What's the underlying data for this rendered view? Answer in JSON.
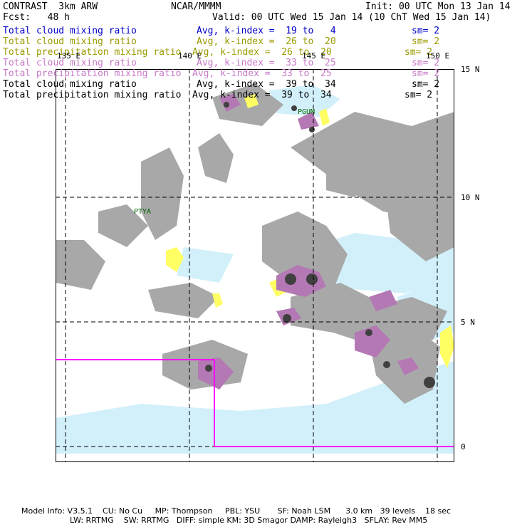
{
  "header": {
    "model": "CONTRAST  3km ARW",
    "center": "NCAR/MMMM",
    "init": "Init: 00 UTC Mon 13 Jan 14",
    "fcst": "Fcst:   48 h",
    "valid": "Valid: 00 UTC Wed 15 Jan 14 (10 ChT Wed 15 Jan 14)"
  },
  "legend": [
    {
      "field": "Total cloud mixing ratio",
      "avg": "Avg, k-index =  19 to   4",
      "sm": "sm= 2",
      "color": "#0000c8"
    },
    {
      "field": "Total cloud mixing ratio",
      "avg": "Avg, k-index =  26 to  20",
      "sm": "sm= 2",
      "color": "#9a9a00"
    },
    {
      "field": "Total precipitation mixing ratio",
      "avg": "Avg, k-index =  26 to  20",
      "sm": "sm= 2",
      "color": "#9a9a00"
    },
    {
      "field": "Total cloud mixing ratio",
      "avg": "Avg, k-index =  33 to  25",
      "sm": "sm= 2",
      "color": "#c878c8"
    },
    {
      "field": "Total precipitation mixing ratio",
      "avg": "Avg, k-index =  33 to  25",
      "sm": "sm= 2",
      "color": "#c878c8"
    },
    {
      "field": "Total cloud mixing ratio",
      "avg": "Avg, k-index =  39 to  34",
      "sm": "sm= 2",
      "color": "#000000"
    },
    {
      "field": "Total precipitation mixing ratio",
      "avg": "Avg, k-index =  39 to  34",
      "sm": "sm= 2",
      "color": "#000000"
    }
  ],
  "map": {
    "lon_labels": [
      "135 E",
      "140 E",
      "145 E",
      "150 E"
    ],
    "lat_labels": [
      "15 N",
      "10 N",
      "5 N",
      "0"
    ],
    "places": [
      "PGUM",
      "PTYA"
    ],
    "colors": {
      "gray": "#a0a0a0",
      "dark": "#404040",
      "yellow": "#ffff64",
      "purple": "#b478b4",
      "lightblue": "#d2f0fa",
      "magenta": "#ff00ff"
    }
  },
  "footer": {
    "line1": "Model Info: V3.5.1    CU: No Cu     MP: Thompson     PBL: YSU       SF: Noah LSM      3.0 km   39 levels    18 sec",
    "line2": "LW: RRTMG    SW: RRTMG   DIFF: simple KM: 3D Smagor DAMP: Rayleigh3   SFLAY: Rev MM5"
  }
}
